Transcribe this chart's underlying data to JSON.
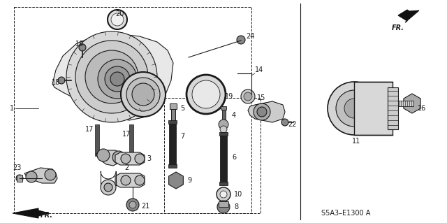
{
  "bg_color": "#ffffff",
  "line_color": "#1a1a1a",
  "diagram_code": "S5A3–E1300 A",
  "figsize": [
    6.4,
    3.19
  ],
  "dpi": 100
}
